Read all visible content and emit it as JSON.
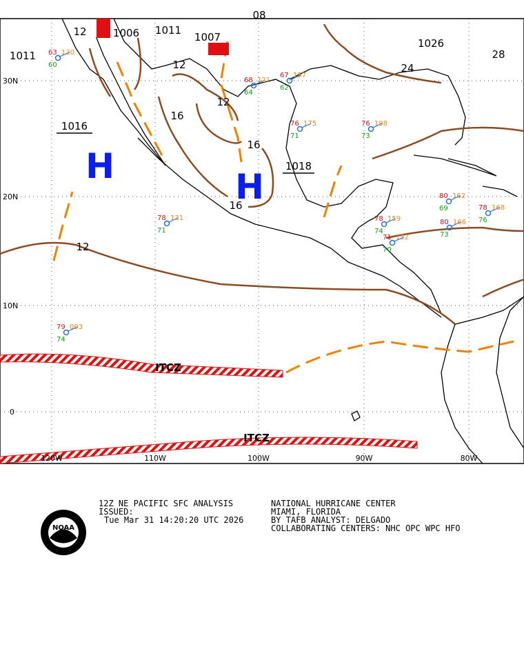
{
  "map": {
    "top_label": "08",
    "lat_labels": [
      "30N",
      "20N",
      "10N",
      "0"
    ],
    "lon_labels": [
      "120W",
      "110W",
      "100W",
      "90W",
      "80W"
    ],
    "pressure_centers": [
      {
        "symbol": "H",
        "pressure": "1016"
      },
      {
        "symbol": "H",
        "pressure": "1018"
      }
    ],
    "pressure_labels": [
      "1011",
      "1006",
      "1011",
      "1007",
      "1026"
    ],
    "isobar_labels": [
      "12",
      "12",
      "12",
      "16",
      "16",
      "16",
      "12",
      "24",
      "28"
    ],
    "front_labels": [
      "ITCZ",
      "ITCZ"
    ],
    "stations": [
      {
        "temp": "78",
        "dew": "71",
        "pressure": "131"
      },
      {
        "temp": "79",
        "dew": "74",
        "pressure": "093"
      },
      {
        "temp": "78",
        "dew": "74",
        "pressure": "159"
      },
      {
        "temp": "71",
        "dew": "70",
        "pressure": "152"
      },
      {
        "temp": "80",
        "dew": "69",
        "pressure": "162"
      },
      {
        "temp": "80",
        "dew": "73",
        "pressure": "166"
      },
      {
        "temp": "78",
        "dew": "76",
        "pressure": "168"
      },
      {
        "temp": "76",
        "dew": "71",
        "pressure": "175"
      },
      {
        "temp": "76",
        "dew": "73",
        "pressure": "198"
      },
      {
        "temp": "63",
        "dew": "60",
        "pressure": "130"
      },
      {
        "temp": "68",
        "dew": "64",
        "pressure": "121"
      },
      {
        "temp": "67",
        "dew": "62",
        "pressure": "157"
      }
    ]
  },
  "footer": {
    "title": "12Z NE PACIFIC SFC ANALYSIS",
    "issued": "ISSUED:",
    "time": "Tue Mar 31 14:20:20 UTC 2026",
    "center": "NATIONAL HURRICANE CENTER",
    "location": "MIAMI, FLORIDA",
    "analyst": "BY TAFB ANALYST: DELGADO",
    "collab": "COLLABORATING CENTERS: NHC OPC WPC HFO",
    "logo": "NOAA"
  }
}
